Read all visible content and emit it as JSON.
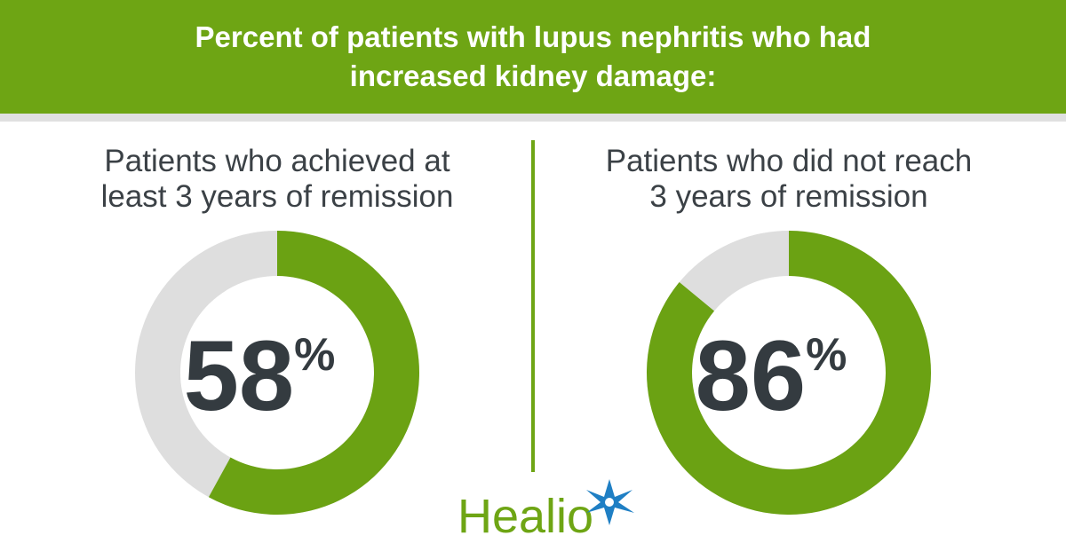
{
  "title": "Percent of patients with lupus nephritis who had increased kidney damage:",
  "logo": "Healio",
  "chart_data": [
    {
      "type": "donut",
      "title": "Patients who achieved at least 3 years of remission",
      "values": [
        58
      ],
      "value_labels": [
        "58%"
      ],
      "total": 100,
      "color": "#6ba213",
      "track_color": "#dedede"
    },
    {
      "type": "donut",
      "title": "Patients who did not reach 3 years of remission",
      "values": [
        86
      ],
      "value_labels": [
        "86%"
      ],
      "total": 100,
      "color": "#6ba213",
      "track_color": "#dedede"
    }
  ]
}
